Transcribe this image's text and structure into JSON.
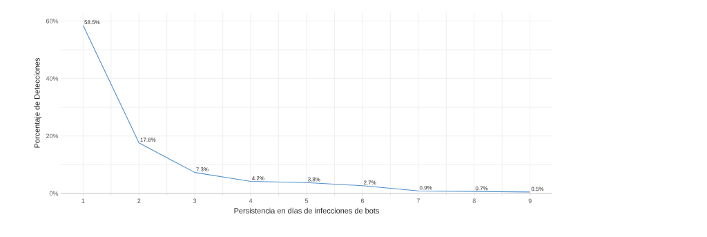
{
  "chart_data": {
    "type": "line",
    "xlabel": "Persistencia en días de infecciones de bots",
    "ylabel": "Porcentaje de Detecciones",
    "x": [
      1,
      2,
      3,
      4,
      5,
      6,
      7,
      8,
      9
    ],
    "series": [
      {
        "color": "#4f8fc9",
        "values": [
          58.5,
          17.6,
          7.3,
          4.2,
          3.8,
          2.7,
          0.9,
          0.7,
          0.5
        ],
        "value_labels": [
          "58.5%",
          "17.6%",
          "7.3%",
          "4.2%",
          "3.8%",
          "2.7%",
          "0.9%",
          "0.7%",
          "0.5%"
        ]
      }
    ],
    "xlim": [
      0.6,
      9.4
    ],
    "ylim": [
      0,
      63
    ],
    "xticks": [
      1,
      {
        "value": 1.5,
        "label": null
      },
      2,
      {
        "value": 2.5,
        "label": null
      },
      3,
      {
        "value": 3.5,
        "label": null
      },
      4,
      {
        "value": 4.5,
        "label": null
      },
      5,
      {
        "value": 5.5,
        "label": null
      },
      6,
      {
        "value": 6.5,
        "label": null
      },
      7,
      {
        "value": 7.5,
        "label": null
      },
      8,
      {
        "value": 8.5,
        "label": null
      },
      9
    ],
    "yticks": [
      {
        "value": 0,
        "label": "0%"
      },
      {
        "value": 10,
        "label": null
      },
      {
        "value": 20,
        "label": "20%"
      },
      {
        "value": 30,
        "label": null
      },
      {
        "value": 40,
        "label": "40%"
      },
      {
        "value": 50,
        "label": null
      },
      {
        "value": 60,
        "label": "60%"
      }
    ],
    "grid": true,
    "marker": "none",
    "line_style": "solid"
  }
}
